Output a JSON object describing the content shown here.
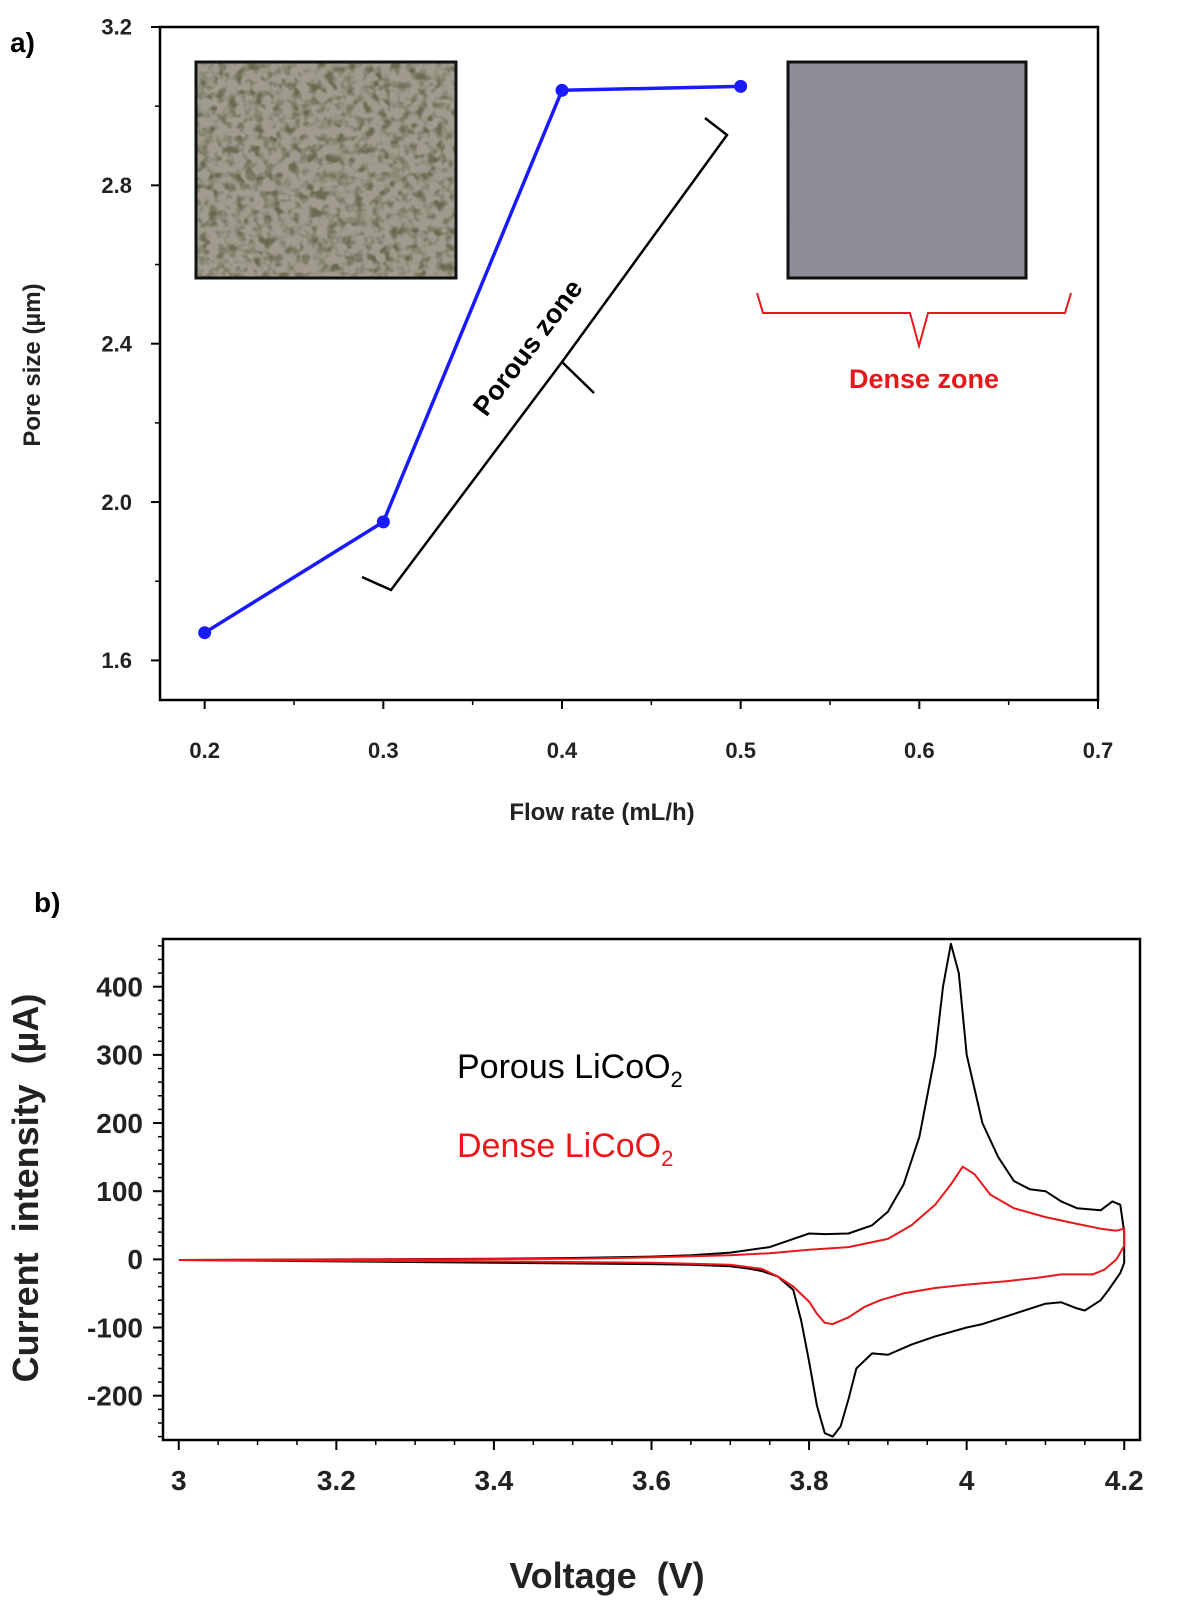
{
  "chart_data": [
    {
      "panel_label": "a)",
      "type": "line",
      "xlabel": "Flow rate (mL/h)",
      "ylabel": "Pore size (µm)",
      "xlim": [
        0.175,
        0.7
      ],
      "ylim": [
        1.5,
        3.2
      ],
      "x_ticks": [
        "0.2",
        "0.3",
        "0.4",
        "0.5",
        "0.6",
        "0.7"
      ],
      "y_ticks": [
        "1.6",
        "2.0",
        "2.4",
        "2.8",
        "3.2"
      ],
      "x_tick_values": [
        0.2,
        0.3,
        0.4,
        0.5,
        0.6,
        0.7
      ],
      "y_tick_values": [
        1.6,
        2.0,
        2.4,
        2.8,
        3.2
      ],
      "series": [
        {
          "color": "#1a1aff",
          "points": [
            [
              0.2,
              1.67
            ],
            [
              0.3,
              1.95
            ],
            [
              0.4,
              3.04
            ],
            [
              0.5,
              3.05
            ]
          ]
        }
      ],
      "annotations": {
        "porous": "Porous zone",
        "dense": "Dense zone"
      },
      "insets": [
        "porous-micrograph",
        "dense-micrograph"
      ],
      "grid": false
    },
    {
      "panel_label": "b)",
      "type": "line",
      "xlabel": "Voltage  (V)",
      "ylabel": "Current  intensity  (µA)",
      "xlim": [
        2.98,
        4.22
      ],
      "ylim": [
        -265,
        470
      ],
      "x_ticks": [
        "3",
        "3.2",
        "3.4",
        "3.6",
        "3.8",
        "4",
        "4.2"
      ],
      "y_ticks": [
        "400",
        "300",
        "200",
        "100",
        "0",
        "-100",
        "-200"
      ],
      "x_tick_values": [
        3.0,
        3.2,
        3.4,
        3.6,
        3.8,
        4.0,
        4.2
      ],
      "y_tick_values": [
        400,
        300,
        200,
        100,
        0,
        -100,
        -200
      ],
      "legend": [
        {
          "text": "Porous LiCoO",
          "sub": "2",
          "color": "#000000"
        },
        {
          "text": "Dense LiCoO",
          "sub": "2",
          "color": "#e8181a"
        }
      ],
      "series": [
        {
          "name": "Porous LiCoO2",
          "color": "#000000",
          "points": [
            [
              3.0,
              -1
            ],
            [
              3.2,
              0
            ],
            [
              3.4,
              1
            ],
            [
              3.5,
              2
            ],
            [
              3.6,
              4
            ],
            [
              3.65,
              6
            ],
            [
              3.7,
              10
            ],
            [
              3.75,
              18
            ],
            [
              3.78,
              30
            ],
            [
              3.8,
              38
            ],
            [
              3.82,
              37
            ],
            [
              3.85,
              38
            ],
            [
              3.88,
              50
            ],
            [
              3.9,
              70
            ],
            [
              3.92,
              110
            ],
            [
              3.94,
              180
            ],
            [
              3.96,
              300
            ],
            [
              3.97,
              400
            ],
            [
              3.98,
              463
            ],
            [
              3.99,
              420
            ],
            [
              4.0,
              300
            ],
            [
              4.02,
              200
            ],
            [
              4.04,
              150
            ],
            [
              4.06,
              115
            ],
            [
              4.08,
              103
            ],
            [
              4.1,
              100
            ],
            [
              4.12,
              85
            ],
            [
              4.14,
              75
            ],
            [
              4.17,
              72
            ],
            [
              4.185,
              85
            ],
            [
              4.195,
              80
            ],
            [
              4.2,
              40
            ],
            [
              4.2,
              -5
            ],
            [
              4.195,
              -20
            ],
            [
              4.18,
              -45
            ],
            [
              4.17,
              -60
            ],
            [
              4.15,
              -75
            ],
            [
              4.14,
              -72
            ],
            [
              4.12,
              -63
            ],
            [
              4.1,
              -65
            ],
            [
              4.06,
              -80
            ],
            [
              4.02,
              -95
            ],
            [
              4.0,
              -100
            ],
            [
              3.96,
              -113
            ],
            [
              3.93,
              -125
            ],
            [
              3.9,
              -140
            ],
            [
              3.88,
              -138
            ],
            [
              3.86,
              -160
            ],
            [
              3.85,
              -205
            ],
            [
              3.84,
              -245
            ],
            [
              3.83,
              -260
            ],
            [
              3.82,
              -255
            ],
            [
              3.81,
              -215
            ],
            [
              3.8,
              -150
            ],
            [
              3.79,
              -90
            ],
            [
              3.78,
              -45
            ],
            [
              3.76,
              -25
            ],
            [
              3.74,
              -17
            ],
            [
              3.72,
              -13
            ],
            [
              3.7,
              -10
            ],
            [
              3.65,
              -8
            ],
            [
              3.6,
              -7
            ],
            [
              3.4,
              -5
            ],
            [
              3.2,
              -3
            ],
            [
              3.0,
              -1
            ]
          ]
        },
        {
          "name": "Dense LiCoO2",
          "color": "#e8181a",
          "points": [
            [
              3.0,
              -1
            ],
            [
              3.3,
              0
            ],
            [
              3.5,
              1
            ],
            [
              3.6,
              3
            ],
            [
              3.7,
              6
            ],
            [
              3.75,
              9
            ],
            [
              3.8,
              14
            ],
            [
              3.85,
              18
            ],
            [
              3.9,
              30
            ],
            [
              3.93,
              50
            ],
            [
              3.96,
              80
            ],
            [
              3.98,
              110
            ],
            [
              3.995,
              136
            ],
            [
              4.01,
              125
            ],
            [
              4.03,
              95
            ],
            [
              4.06,
              75
            ],
            [
              4.1,
              62
            ],
            [
              4.14,
              52
            ],
            [
              4.17,
              45
            ],
            [
              4.19,
              42
            ],
            [
              4.2,
              45
            ],
            [
              4.2,
              20
            ],
            [
              4.19,
              0
            ],
            [
              4.175,
              -15
            ],
            [
              4.16,
              -22
            ],
            [
              4.14,
              -22
            ],
            [
              4.12,
              -22
            ],
            [
              4.09,
              -27
            ],
            [
              4.05,
              -32
            ],
            [
              4.0,
              -37
            ],
            [
              3.96,
              -42
            ],
            [
              3.92,
              -50
            ],
            [
              3.89,
              -60
            ],
            [
              3.87,
              -70
            ],
            [
              3.85,
              -85
            ],
            [
              3.83,
              -95
            ],
            [
              3.82,
              -93
            ],
            [
              3.81,
              -80
            ],
            [
              3.8,
              -62
            ],
            [
              3.78,
              -40
            ],
            [
              3.76,
              -25
            ],
            [
              3.74,
              -14
            ],
            [
              3.7,
              -8
            ],
            [
              3.6,
              -5
            ],
            [
              3.4,
              -3
            ],
            [
              3.2,
              -2
            ],
            [
              3.0,
              -1
            ]
          ]
        }
      ],
      "grid": false
    }
  ]
}
